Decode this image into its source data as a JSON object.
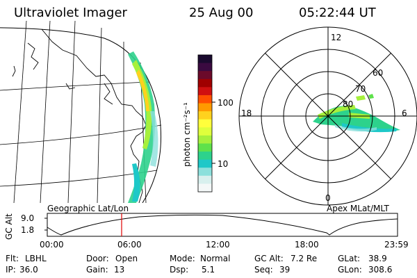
{
  "header": {
    "instrument": "Ultraviolet Imager",
    "date": "25 Aug 00",
    "time": "05:22:44 UT"
  },
  "colorbar": {
    "unit_label": "photon cm⁻²s⁻¹",
    "ticks": [
      "100",
      "10"
    ],
    "colors": [
      "#1a0a2e",
      "#3a0a40",
      "#6b0a2a",
      "#a00000",
      "#d01010",
      "#ff5000",
      "#ff9a00",
      "#ffd21e",
      "#ffff3c",
      "#dfff3c",
      "#a6f03c",
      "#5ee14b",
      "#2dd28c",
      "#1ec8c8",
      "#8ce0dc",
      "#d8f0ee",
      "#f4f8f8"
    ]
  },
  "map": {
    "label": "Geographic Lat/Lon"
  },
  "polar": {
    "label": "Apex MLat/MLT",
    "mlt_labels": [
      "12",
      "18",
      "6",
      "0"
    ],
    "lat_labels": [
      "60",
      "70",
      "80"
    ]
  },
  "altitude_plot": {
    "axis_label": "GC Alt",
    "y_ticks": [
      "9.0",
      "1.8"
    ],
    "x_ticks": [
      "00:00",
      "06:00",
      "12:00",
      "18:00",
      "23:59"
    ]
  },
  "status": {
    "row1": [
      {
        "label": "Flt:",
        "value": "LBHL"
      },
      {
        "label": "Door:",
        "value": "Open"
      },
      {
        "label": "Mode:",
        "value": "Normal"
      },
      {
        "label": "GC Alt:",
        "value": "7.2 Re"
      },
      {
        "label": "GLat:",
        "value": "38.9"
      }
    ],
    "row2": [
      {
        "label": "IP:",
        "value": "36.0"
      },
      {
        "label": "Gain:",
        "value": "13"
      },
      {
        "label": "Dsp:",
        "value": "5.1"
      },
      {
        "label": "Seq:",
        "value": "39"
      },
      {
        "label": "GLon:",
        "value": "308.6"
      }
    ]
  }
}
